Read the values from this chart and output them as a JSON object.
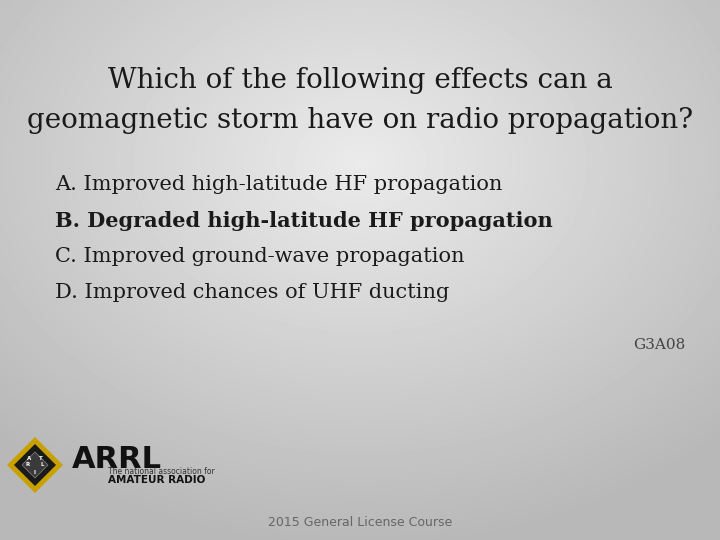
{
  "title_line1": "Which of the following effects can a",
  "title_line2": "geomagnetic storm have on radio propagation?",
  "answers": [
    {
      "label": "A. Improved high-latitude HF propagation",
      "bold": false
    },
    {
      "label": "B. Degraded high-latitude HF propagation",
      "bold": true
    },
    {
      "label": "C. Improved ground-wave propagation",
      "bold": false
    },
    {
      "label": "D. Improved chances of UHF ducting",
      "bold": false
    }
  ],
  "question_id": "G3A08",
  "footer": "2015 General License Course",
  "title_fontsize": 20,
  "answer_fontsize": 15,
  "question_id_fontsize": 11,
  "footer_fontsize": 9,
  "text_color": "#1a1a1a",
  "footer_color": "#666666",
  "qid_color": "#444444",
  "bg_light": 0.9,
  "bg_dark": 0.72
}
